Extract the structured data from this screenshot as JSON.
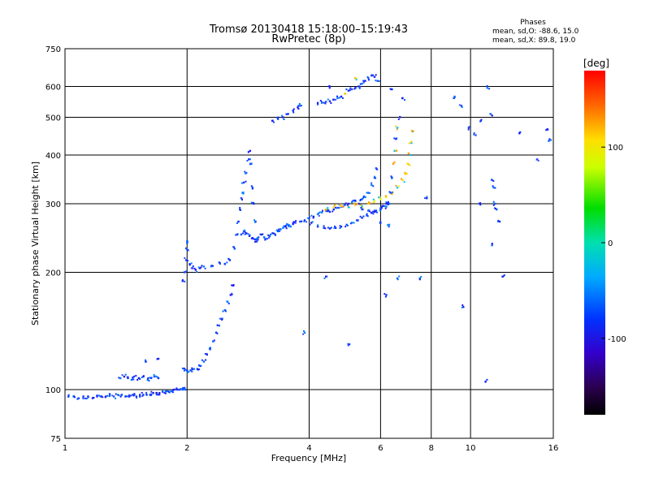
{
  "chart_data": {
    "type": "scatter",
    "title": "Tromsø 20130418 15:18:00–15:19:43",
    "subtitle": "RwPretec (8p)",
    "phases_info": {
      "heading": "Phases",
      "line_o": "mean, sd,O: -88.6, 15.0",
      "line_x": "mean, sd,X:  89.8, 19.0"
    },
    "xlabel": "Frequency [MHz]",
    "ylabel": "Stationary phase Virtual Height [km]",
    "x_scale": "log",
    "y_scale": "log",
    "xlim": [
      1,
      16
    ],
    "ylim": [
      75,
      750
    ],
    "x_ticks": [
      1,
      2,
      4,
      6,
      8,
      10,
      16
    ],
    "y_ticks": [
      75,
      100,
      200,
      300,
      400,
      500,
      600,
      750
    ],
    "grid": true,
    "colorbar": {
      "label": "[deg]",
      "range": [
        -180,
        180
      ],
      "ticks": [
        100,
        0,
        -100
      ]
    },
    "series": [
      {
        "points": [
          [
            1.02,
            96
          ],
          [
            1.05,
            96
          ],
          [
            1.08,
            95
          ],
          [
            1.11,
            96
          ],
          [
            1.14,
            96
          ],
          [
            1.17,
            95
          ],
          [
            1.2,
            96
          ],
          [
            1.23,
            96
          ],
          [
            1.26,
            96
          ],
          [
            1.29,
            97
          ],
          [
            1.32,
            96
          ],
          [
            1.35,
            97
          ],
          [
            1.38,
            97
          ],
          [
            1.41,
            96
          ],
          [
            1.44,
            96
          ],
          [
            1.47,
            97
          ],
          [
            1.5,
            96
          ],
          [
            1.53,
            96
          ],
          [
            1.56,
            97
          ],
          [
            1.59,
            97
          ],
          [
            1.62,
            97
          ],
          [
            1.65,
            98
          ],
          [
            1.68,
            98
          ],
          [
            1.71,
            98
          ],
          [
            1.74,
            99
          ],
          [
            1.77,
            99
          ],
          [
            1.8,
            99
          ],
          [
            1.83,
            99
          ],
          [
            1.86,
            100
          ],
          [
            1.89,
            100
          ],
          [
            1.92,
            100
          ],
          [
            1.95,
            100
          ],
          [
            1.98,
            100
          ]
        ]
      },
      {
        "points": [
          [
            1.37,
            107
          ],
          [
            1.4,
            108
          ],
          [
            1.43,
            107
          ],
          [
            1.46,
            106
          ],
          [
            1.48,
            108
          ],
          [
            1.52,
            107
          ],
          [
            1.56,
            108
          ],
          [
            1.6,
            106
          ],
          [
            1.63,
            107
          ],
          [
            1.66,
            108
          ],
          [
            1.7,
            107
          ],
          [
            1.58,
            118
          ],
          [
            1.7,
            120
          ]
        ]
      },
      {
        "points": [
          [
            1.97,
            112
          ],
          [
            2.0,
            112
          ],
          [
            2.04,
            112
          ],
          [
            2.08,
            113
          ],
          [
            2.12,
            113
          ],
          [
            2.16,
            115
          ],
          [
            2.2,
            118
          ],
          [
            2.24,
            123
          ],
          [
            2.28,
            128
          ],
          [
            2.32,
            133
          ],
          [
            2.36,
            140
          ],
          [
            2.4,
            146
          ],
          [
            2.44,
            152
          ],
          [
            2.48,
            160
          ],
          [
            2.52,
            168
          ],
          [
            2.56,
            175
          ],
          [
            2.6,
            185
          ]
        ]
      },
      {
        "points": [
          [
            1.95,
            190
          ],
          [
            1.97,
            200
          ],
          [
            1.99,
            215
          ],
          [
            2.01,
            228
          ],
          [
            2.0,
            238
          ],
          [
            2.03,
            210
          ],
          [
            2.06,
            205
          ],
          [
            2.1,
            203
          ],
          [
            2.15,
            205
          ],
          [
            2.2,
            207
          ],
          [
            2.3,
            208
          ],
          [
            2.4,
            212
          ],
          [
            2.48,
            210
          ],
          [
            2.55,
            215
          ],
          [
            2.62,
            230
          ],
          [
            2.66,
            250
          ],
          [
            2.68,
            270
          ],
          [
            2.7,
            290
          ],
          [
            2.72,
            310
          ],
          [
            2.74,
            320
          ],
          [
            2.76,
            340
          ],
          [
            2.8,
            360
          ],
          [
            2.84,
            390
          ],
          [
            2.86,
            410
          ],
          [
            2.88,
            380
          ],
          [
            2.9,
            330
          ],
          [
            2.92,
            300
          ],
          [
            2.95,
            270
          ],
          [
            2.97,
            240
          ]
        ]
      },
      {
        "points": [
          [
            2.72,
            250
          ],
          [
            2.76,
            255
          ],
          [
            2.8,
            252
          ],
          [
            2.85,
            248
          ],
          [
            2.9,
            245
          ],
          [
            2.95,
            243
          ],
          [
            3.0,
            246
          ],
          [
            3.05,
            250
          ],
          [
            3.1,
            246
          ],
          [
            3.15,
            244
          ],
          [
            3.2,
            248
          ],
          [
            3.25,
            252
          ],
          [
            3.3,
            250
          ],
          [
            3.35,
            255
          ],
          [
            3.4,
            258
          ],
          [
            3.45,
            260
          ],
          [
            3.5,
            262
          ],
          [
            3.55,
            265
          ],
          [
            3.6,
            262
          ],
          [
            3.65,
            266
          ],
          [
            3.7,
            268
          ],
          [
            3.8,
            270
          ],
          [
            3.9,
            272
          ],
          [
            4.0,
            275
          ],
          [
            4.1,
            278
          ],
          [
            4.2,
            282
          ],
          [
            4.3,
            285
          ],
          [
            4.4,
            288
          ],
          [
            4.5,
            286
          ],
          [
            4.6,
            290
          ],
          [
            4.7,
            293
          ],
          [
            4.8,
            295
          ],
          [
            4.9,
            298
          ],
          [
            5.0,
            300
          ],
          [
            5.1,
            303
          ],
          [
            5.2,
            305
          ],
          [
            5.3,
            300
          ],
          [
            5.4,
            308
          ],
          [
            5.5,
            312
          ],
          [
            5.6,
            320
          ],
          [
            5.7,
            335
          ],
          [
            5.8,
            350
          ],
          [
            5.85,
            370
          ]
        ]
      },
      {
        "points": [
          [
            4.05,
            268
          ],
          [
            4.2,
            262
          ],
          [
            4.35,
            260
          ],
          [
            4.5,
            259
          ],
          [
            4.65,
            260
          ],
          [
            4.8,
            262
          ],
          [
            4.95,
            265
          ],
          [
            5.1,
            268
          ],
          [
            5.25,
            272
          ],
          [
            5.4,
            276
          ],
          [
            5.55,
            280
          ],
          [
            5.7,
            284
          ],
          [
            5.85,
            288
          ],
          [
            6.0,
            292
          ],
          [
            6.1,
            296
          ]
        ]
      },
      {
        "points": [
          [
            4.4,
            290
          ],
          [
            4.6,
            294
          ],
          [
            4.8,
            296
          ],
          [
            5.0,
            294
          ],
          [
            5.2,
            298
          ],
          [
            5.4,
            296
          ],
          [
            5.6,
            300
          ],
          [
            5.8,
            305
          ],
          [
            6.0,
            308
          ],
          [
            6.2,
            312
          ],
          [
            6.4,
            318
          ],
          [
            6.6,
            330
          ],
          [
            6.8,
            345
          ],
          [
            6.9,
            360
          ],
          [
            7.0,
            380
          ],
          [
            7.1,
            400
          ],
          [
            7.15,
            430
          ],
          [
            7.2,
            460
          ]
        ]
      },
      {
        "points": [
          [
            5.4,
            290
          ],
          [
            5.6,
            288
          ],
          [
            5.8,
            286
          ],
          [
            6.0,
            290
          ],
          [
            6.2,
            295
          ],
          [
            6.3,
            300
          ],
          [
            6.35,
            320
          ],
          [
            6.4,
            350
          ],
          [
            6.45,
            380
          ],
          [
            6.5,
            410
          ],
          [
            6.55,
            440
          ],
          [
            6.6,
            470
          ],
          [
            6.7,
            500
          ],
          [
            6.4,
            590
          ],
          [
            6.8,
            560
          ],
          [
            6.2,
            300
          ],
          [
            6.0,
            268
          ],
          [
            6.3,
            265
          ]
        ]
      },
      {
        "points": [
          [
            3.25,
            490
          ],
          [
            3.35,
            495
          ],
          [
            3.45,
            500
          ],
          [
            3.55,
            510
          ],
          [
            3.65,
            520
          ],
          [
            3.75,
            530
          ],
          [
            3.8,
            535
          ]
        ]
      },
      {
        "points": [
          [
            4.2,
            540
          ],
          [
            4.3,
            545
          ],
          [
            4.4,
            548
          ],
          [
            4.5,
            550
          ],
          [
            4.6,
            555
          ],
          [
            4.7,
            560
          ],
          [
            4.8,
            565
          ],
          [
            4.9,
            575
          ],
          [
            5.0,
            585
          ],
          [
            5.1,
            590
          ],
          [
            5.2,
            595
          ],
          [
            5.3,
            600
          ],
          [
            5.4,
            610
          ],
          [
            5.5,
            620
          ],
          [
            5.6,
            630
          ],
          [
            5.7,
            640
          ],
          [
            5.8,
            635
          ],
          [
            5.9,
            620
          ],
          [
            4.5,
            600
          ],
          [
            5.2,
            630
          ]
        ]
      },
      {
        "points": [
          [
            3.9,
            140
          ],
          [
            4.4,
            195
          ],
          [
            5.0,
            130
          ],
          [
            6.2,
            175
          ],
          [
            6.6,
            193
          ],
          [
            7.5,
            193
          ],
          [
            9.6,
            163
          ],
          [
            10.9,
            105
          ],
          [
            12.0,
            195
          ],
          [
            9.1,
            560
          ],
          [
            9.5,
            535
          ],
          [
            9.9,
            470
          ],
          [
            10.6,
            490
          ],
          [
            11.2,
            510
          ],
          [
            11.0,
            595
          ],
          [
            10.3,
            450
          ],
          [
            13.2,
            455
          ],
          [
            15.5,
            465
          ],
          [
            15.6,
            435
          ],
          [
            11.3,
            345
          ],
          [
            11.4,
            330
          ],
          [
            11.5,
            300
          ],
          [
            11.6,
            290
          ],
          [
            11.8,
            270
          ],
          [
            11.3,
            235
          ],
          [
            14.6,
            390
          ],
          [
            10.5,
            300
          ],
          [
            7.8,
            310
          ]
        ]
      }
    ]
  }
}
